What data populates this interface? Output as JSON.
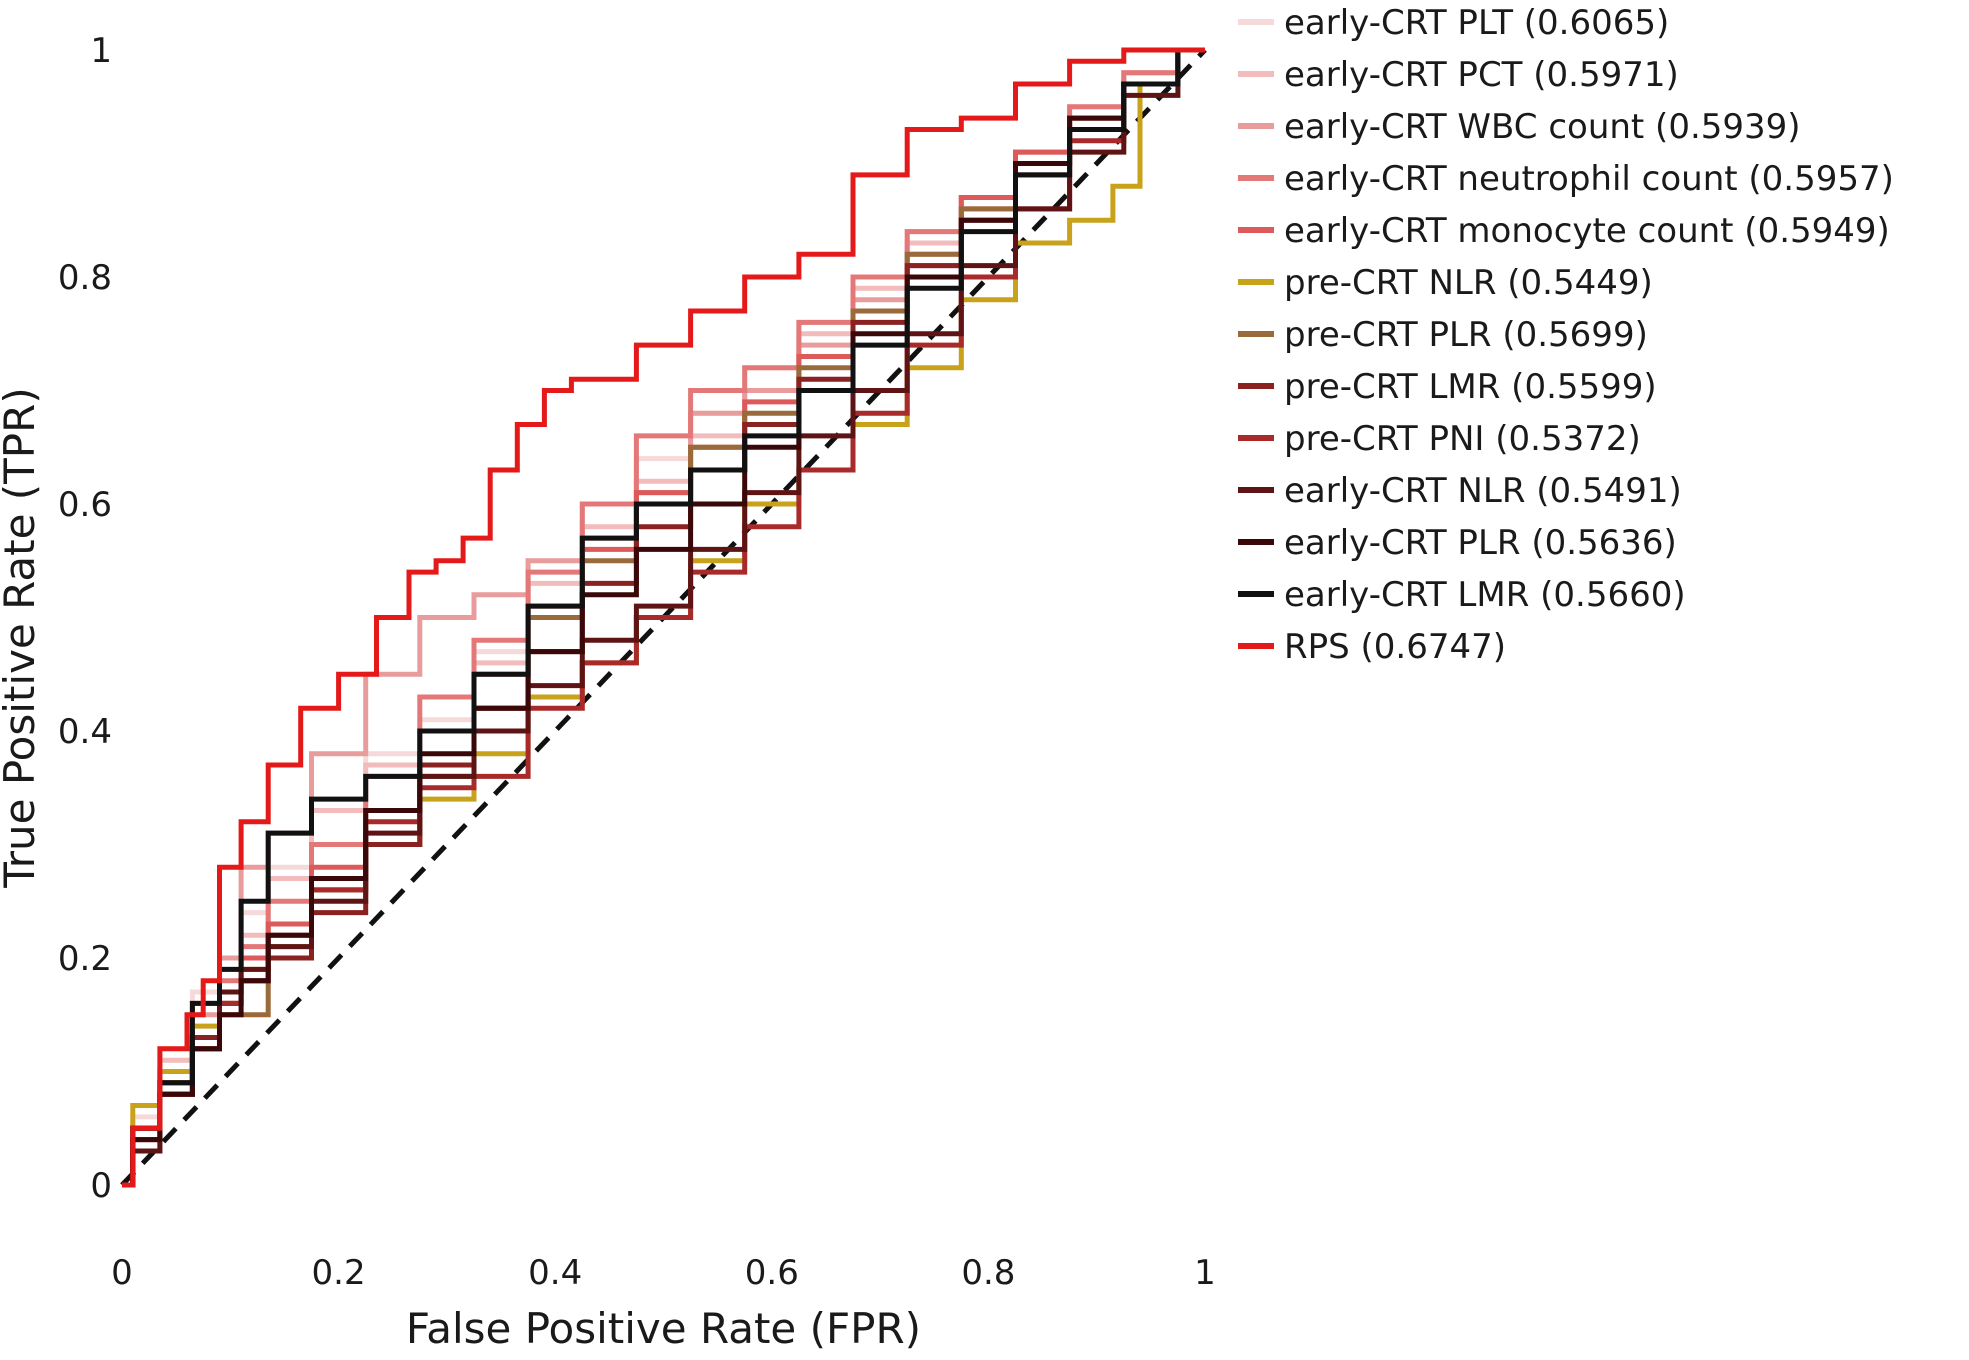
{
  "chart_data": {
    "type": "line",
    "title": "",
    "xlabel": "False Positive Rate (FPR)",
    "ylabel": "True Positive Rate (TPR)",
    "xlim": [
      0,
      1
    ],
    "ylim": [
      0,
      1
    ],
    "x_ticks": [
      0,
      0.2,
      0.4,
      0.6,
      0.8,
      1
    ],
    "x_tick_labels": [
      "0",
      "0.2",
      "0.4",
      "0.6",
      "0.8",
      "1"
    ],
    "y_ticks": [
      0,
      0.2,
      0.4,
      0.6,
      0.8,
      1
    ],
    "y_tick_labels": [
      "0",
      "0.2",
      "0.4",
      "0.6",
      "0.8",
      "1"
    ],
    "grid": false,
    "legend_position": "right",
    "reference_line": {
      "name": "chance",
      "x": [
        0,
        1
      ],
      "y": [
        0,
        1
      ],
      "style": "dashed",
      "color": "#111111"
    },
    "series": [
      {
        "name": "early-CRT PLT (0.6065)",
        "color": "#f6dada",
        "x": [
          0,
          0.02,
          0.05,
          0.08,
          0.1,
          0.12,
          0.15,
          0.2,
          0.25,
          0.3,
          0.35,
          0.4,
          0.45,
          0.5,
          0.55,
          0.6,
          0.65,
          0.7,
          0.75,
          0.8,
          0.85,
          0.9,
          0.95,
          1
        ],
        "y": [
          0,
          0.06,
          0.12,
          0.17,
          0.2,
          0.24,
          0.28,
          0.34,
          0.38,
          0.41,
          0.47,
          0.55,
          0.6,
          0.64,
          0.68,
          0.72,
          0.76,
          0.8,
          0.84,
          0.87,
          0.91,
          0.95,
          0.98,
          1
        ]
      },
      {
        "name": "early-CRT PCT (0.5971)",
        "color": "#f2bcbc",
        "x": [
          0,
          0.02,
          0.05,
          0.08,
          0.1,
          0.12,
          0.15,
          0.2,
          0.25,
          0.3,
          0.35,
          0.4,
          0.45,
          0.5,
          0.55,
          0.6,
          0.65,
          0.7,
          0.75,
          0.8,
          0.85,
          0.9,
          0.95,
          1
        ],
        "y": [
          0,
          0.05,
          0.11,
          0.16,
          0.19,
          0.22,
          0.27,
          0.33,
          0.37,
          0.4,
          0.46,
          0.53,
          0.58,
          0.62,
          0.66,
          0.7,
          0.75,
          0.79,
          0.83,
          0.86,
          0.9,
          0.94,
          0.98,
          1
        ]
      },
      {
        "name": "early-CRT WBC count (0.5939)",
        "color": "#e99c9c",
        "x": [
          0,
          0.02,
          0.05,
          0.08,
          0.1,
          0.12,
          0.15,
          0.2,
          0.25,
          0.3,
          0.35,
          0.4,
          0.45,
          0.5,
          0.55,
          0.6,
          0.65,
          0.7,
          0.75,
          0.8,
          0.85,
          0.9,
          0.95,
          1
        ],
        "y": [
          0,
          0.05,
          0.1,
          0.15,
          0.2,
          0.28,
          0.31,
          0.38,
          0.45,
          0.5,
          0.52,
          0.55,
          0.57,
          0.61,
          0.68,
          0.7,
          0.74,
          0.78,
          0.82,
          0.86,
          0.9,
          0.94,
          0.97,
          1
        ]
      },
      {
        "name": "early-CRT neutrophil count (0.5957)",
        "color": "#e47878",
        "x": [
          0,
          0.02,
          0.05,
          0.08,
          0.1,
          0.12,
          0.15,
          0.2,
          0.25,
          0.3,
          0.35,
          0.4,
          0.45,
          0.5,
          0.55,
          0.6,
          0.65,
          0.7,
          0.75,
          0.8,
          0.85,
          0.9,
          0.95,
          1
        ],
        "y": [
          0,
          0.04,
          0.1,
          0.16,
          0.18,
          0.21,
          0.25,
          0.3,
          0.36,
          0.43,
          0.48,
          0.54,
          0.6,
          0.66,
          0.7,
          0.72,
          0.76,
          0.8,
          0.84,
          0.87,
          0.91,
          0.95,
          0.98,
          1
        ]
      },
      {
        "name": "early-CRT monocyte count (0.5949)",
        "color": "#dc5a5a",
        "x": [
          0,
          0.02,
          0.05,
          0.08,
          0.1,
          0.12,
          0.15,
          0.2,
          0.25,
          0.3,
          0.35,
          0.4,
          0.45,
          0.5,
          0.55,
          0.6,
          0.65,
          0.7,
          0.75,
          0.8,
          0.85,
          0.9,
          0.95,
          1
        ],
        "y": [
          0,
          0.03,
          0.08,
          0.13,
          0.17,
          0.2,
          0.23,
          0.28,
          0.33,
          0.37,
          0.45,
          0.51,
          0.56,
          0.61,
          0.65,
          0.69,
          0.73,
          0.77,
          0.81,
          0.87,
          0.91,
          0.94,
          0.97,
          1
        ]
      },
      {
        "name": "pre-CRT NLR (0.5449)",
        "color": "#c8a21a",
        "x": [
          0,
          0.02,
          0.05,
          0.08,
          0.1,
          0.12,
          0.15,
          0.2,
          0.25,
          0.3,
          0.35,
          0.4,
          0.45,
          0.5,
          0.55,
          0.6,
          0.65,
          0.7,
          0.75,
          0.8,
          0.85,
          0.9,
          0.93,
          0.95,
          1
        ],
        "y": [
          0,
          0.07,
          0.1,
          0.14,
          0.16,
          0.19,
          0.21,
          0.26,
          0.3,
          0.34,
          0.38,
          0.43,
          0.46,
          0.5,
          0.55,
          0.6,
          0.63,
          0.67,
          0.72,
          0.78,
          0.83,
          0.85,
          0.88,
          0.97,
          1
        ]
      },
      {
        "name": "pre-CRT PLR (0.5699)",
        "color": "#9a6a3a",
        "x": [
          0,
          0.02,
          0.05,
          0.08,
          0.1,
          0.12,
          0.15,
          0.2,
          0.25,
          0.3,
          0.35,
          0.4,
          0.45,
          0.5,
          0.55,
          0.6,
          0.65,
          0.7,
          0.75,
          0.8,
          0.85,
          0.9,
          0.95,
          1
        ],
        "y": [
          0,
          0.05,
          0.09,
          0.13,
          0.15,
          0.15,
          0.2,
          0.26,
          0.3,
          0.36,
          0.42,
          0.5,
          0.55,
          0.6,
          0.65,
          0.68,
          0.72,
          0.77,
          0.82,
          0.86,
          0.9,
          0.94,
          0.97,
          1
        ]
      },
      {
        "name": "pre-CRT LMR (0.5599)",
        "color": "#8a2222",
        "x": [
          0,
          0.02,
          0.05,
          0.08,
          0.1,
          0.12,
          0.15,
          0.2,
          0.25,
          0.3,
          0.35,
          0.4,
          0.45,
          0.5,
          0.55,
          0.6,
          0.65,
          0.7,
          0.75,
          0.8,
          0.85,
          0.9,
          0.95,
          1
        ],
        "y": [
          0,
          0.05,
          0.09,
          0.13,
          0.16,
          0.18,
          0.2,
          0.24,
          0.3,
          0.37,
          0.42,
          0.47,
          0.53,
          0.58,
          0.63,
          0.67,
          0.71,
          0.76,
          0.81,
          0.85,
          0.89,
          0.93,
          0.97,
          1
        ]
      },
      {
        "name": "pre-CRT PNI (0.5372)",
        "color": "#a82a2a",
        "x": [
          0,
          0.02,
          0.05,
          0.08,
          0.1,
          0.12,
          0.15,
          0.2,
          0.25,
          0.3,
          0.35,
          0.4,
          0.45,
          0.5,
          0.55,
          0.6,
          0.65,
          0.7,
          0.75,
          0.8,
          0.85,
          0.9,
          0.95,
          1
        ],
        "y": [
          0,
          0.04,
          0.08,
          0.12,
          0.16,
          0.18,
          0.22,
          0.26,
          0.32,
          0.35,
          0.36,
          0.42,
          0.46,
          0.5,
          0.54,
          0.58,
          0.63,
          0.68,
          0.74,
          0.8,
          0.86,
          0.92,
          0.97,
          1
        ]
      },
      {
        "name": "early-CRT NLR (0.5491)",
        "color": "#5e1414",
        "x": [
          0,
          0.02,
          0.05,
          0.08,
          0.1,
          0.12,
          0.15,
          0.2,
          0.25,
          0.3,
          0.35,
          0.4,
          0.45,
          0.5,
          0.55,
          0.6,
          0.65,
          0.7,
          0.75,
          0.8,
          0.85,
          0.9,
          0.95,
          1
        ],
        "y": [
          0,
          0.03,
          0.08,
          0.12,
          0.17,
          0.19,
          0.21,
          0.25,
          0.31,
          0.36,
          0.4,
          0.44,
          0.48,
          0.51,
          0.56,
          0.61,
          0.66,
          0.7,
          0.75,
          0.81,
          0.86,
          0.91,
          0.96,
          1
        ]
      },
      {
        "name": "early-CRT PLR (0.5636)",
        "color": "#3a0808",
        "x": [
          0,
          0.02,
          0.05,
          0.08,
          0.1,
          0.12,
          0.15,
          0.2,
          0.25,
          0.3,
          0.35,
          0.4,
          0.45,
          0.5,
          0.55,
          0.6,
          0.65,
          0.7,
          0.75,
          0.8,
          0.85,
          0.9,
          0.95,
          1
        ],
        "y": [
          0,
          0.04,
          0.08,
          0.12,
          0.15,
          0.18,
          0.22,
          0.27,
          0.33,
          0.38,
          0.42,
          0.47,
          0.52,
          0.56,
          0.6,
          0.65,
          0.7,
          0.75,
          0.8,
          0.85,
          0.9,
          0.94,
          0.97,
          1
        ]
      },
      {
        "name": "early-CRT LMR (0.5660)",
        "color": "#111111",
        "x": [
          0,
          0.02,
          0.05,
          0.08,
          0.1,
          0.12,
          0.15,
          0.2,
          0.25,
          0.3,
          0.35,
          0.4,
          0.45,
          0.5,
          0.55,
          0.6,
          0.65,
          0.7,
          0.75,
          0.8,
          0.85,
          0.9,
          0.95,
          1
        ],
        "y": [
          0,
          0.05,
          0.09,
          0.16,
          0.19,
          0.25,
          0.31,
          0.34,
          0.36,
          0.4,
          0.45,
          0.51,
          0.57,
          0.6,
          0.63,
          0.66,
          0.7,
          0.74,
          0.79,
          0.84,
          0.89,
          0.93,
          0.97,
          1
        ]
      },
      {
        "name": "RPS (0.6747)",
        "color": "#e41a1a",
        "x": [
          0,
          0.02,
          0.05,
          0.07,
          0.08,
          0.1,
          0.12,
          0.15,
          0.18,
          0.22,
          0.25,
          0.28,
          0.3,
          0.33,
          0.35,
          0.38,
          0.4,
          0.43,
          0.45,
          0.5,
          0.55,
          0.6,
          0.65,
          0.7,
          0.75,
          0.8,
          0.85,
          0.9,
          0.95,
          1
        ],
        "y": [
          0,
          0.05,
          0.12,
          0.15,
          0.18,
          0.28,
          0.32,
          0.37,
          0.42,
          0.45,
          0.5,
          0.54,
          0.55,
          0.57,
          0.63,
          0.67,
          0.7,
          0.71,
          0.71,
          0.74,
          0.77,
          0.8,
          0.82,
          0.89,
          0.93,
          0.94,
          0.97,
          0.99,
          1,
          1
        ]
      }
    ]
  }
}
